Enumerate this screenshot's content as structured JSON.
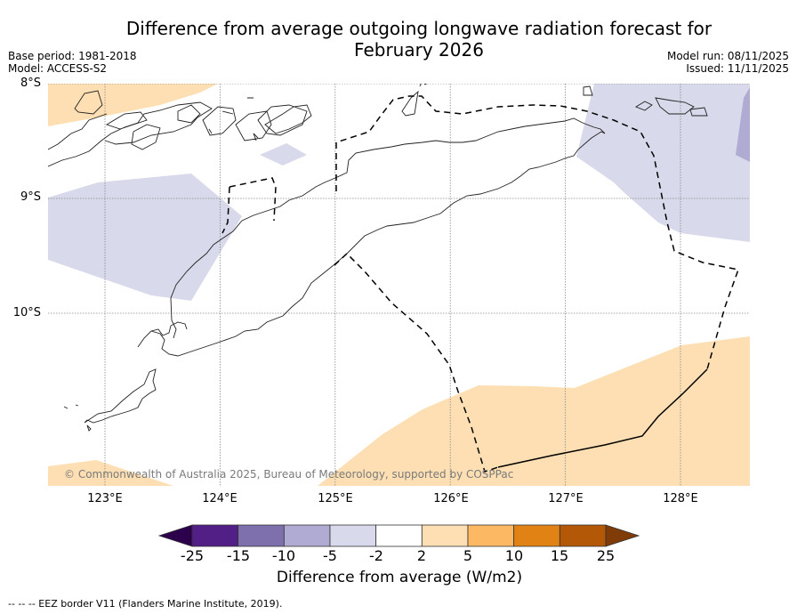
{
  "title_line1": "Difference from average outgoing longwave radiation forecast for",
  "title_line2": "February 2026",
  "meta_left": {
    "base_period": "Base period: 1981-2018",
    "model": "Model: ACCESS-S2"
  },
  "meta_right": {
    "model_run": "Model run: 08/11/2025",
    "issued": "Issued: 11/11/2025"
  },
  "map": {
    "lat_labels": [
      "8°S",
      "9°S",
      "10°S"
    ],
    "lon_labels": [
      "123°E",
      "124°E",
      "125°E",
      "126°E",
      "127°E",
      "128°E"
    ],
    "extent": {
      "lon_min": 122.5,
      "lon_max": 128.6,
      "lat_north": -8.0,
      "lat_south": -11.5
    },
    "gridlines": {
      "lons": [
        123,
        124,
        125,
        126,
        127,
        128
      ],
      "lats": [
        -8,
        -9,
        -10
      ]
    },
    "anomaly_regions": [
      {
        "name": "positive-anomaly-northwest",
        "category": "2 to 5",
        "color": "#fddfb3"
      },
      {
        "name": "negative-anomaly-west",
        "category": "-5 to -2",
        "color": "#d8d9ea"
      },
      {
        "name": "negative-anomaly-small",
        "category": "-5 to -2",
        "color": "#d8d9ea"
      },
      {
        "name": "negative-anomaly-northeast",
        "category": "-5 to -2",
        "color": "#d8d9ea"
      },
      {
        "name": "negative-anomaly-east-edge",
        "category": "-10 to -5",
        "color": "#b0abd3"
      },
      {
        "name": "positive-anomaly-south",
        "category": "2 to 5",
        "color": "#fddfb3"
      },
      {
        "name": "positive-anomaly-southwest",
        "category": "2 to 5",
        "color": "#fddfb3"
      }
    ],
    "copyright": "© Commonwealth of Australia 2025, Bureau of Meteorology, supported by COSPPac"
  },
  "colorbar": {
    "ticks": [
      "-25",
      "-15",
      "-10",
      "-5",
      "-2",
      "2",
      "5",
      "10",
      "15",
      "25"
    ],
    "colors": [
      "#521f86",
      "#7e70ad",
      "#b0abd3",
      "#d8d9ea",
      "#ffffff",
      "#fddfb3",
      "#fdb863",
      "#e08214",
      "#b35806"
    ],
    "extend_low_color": "#2d004b",
    "extend_high_color": "#7f3b08",
    "label": "Difference from average (W/m2)"
  },
  "footnote": "--  --  -- EEZ border V11 (Flanders Marine Institute, 2019)."
}
